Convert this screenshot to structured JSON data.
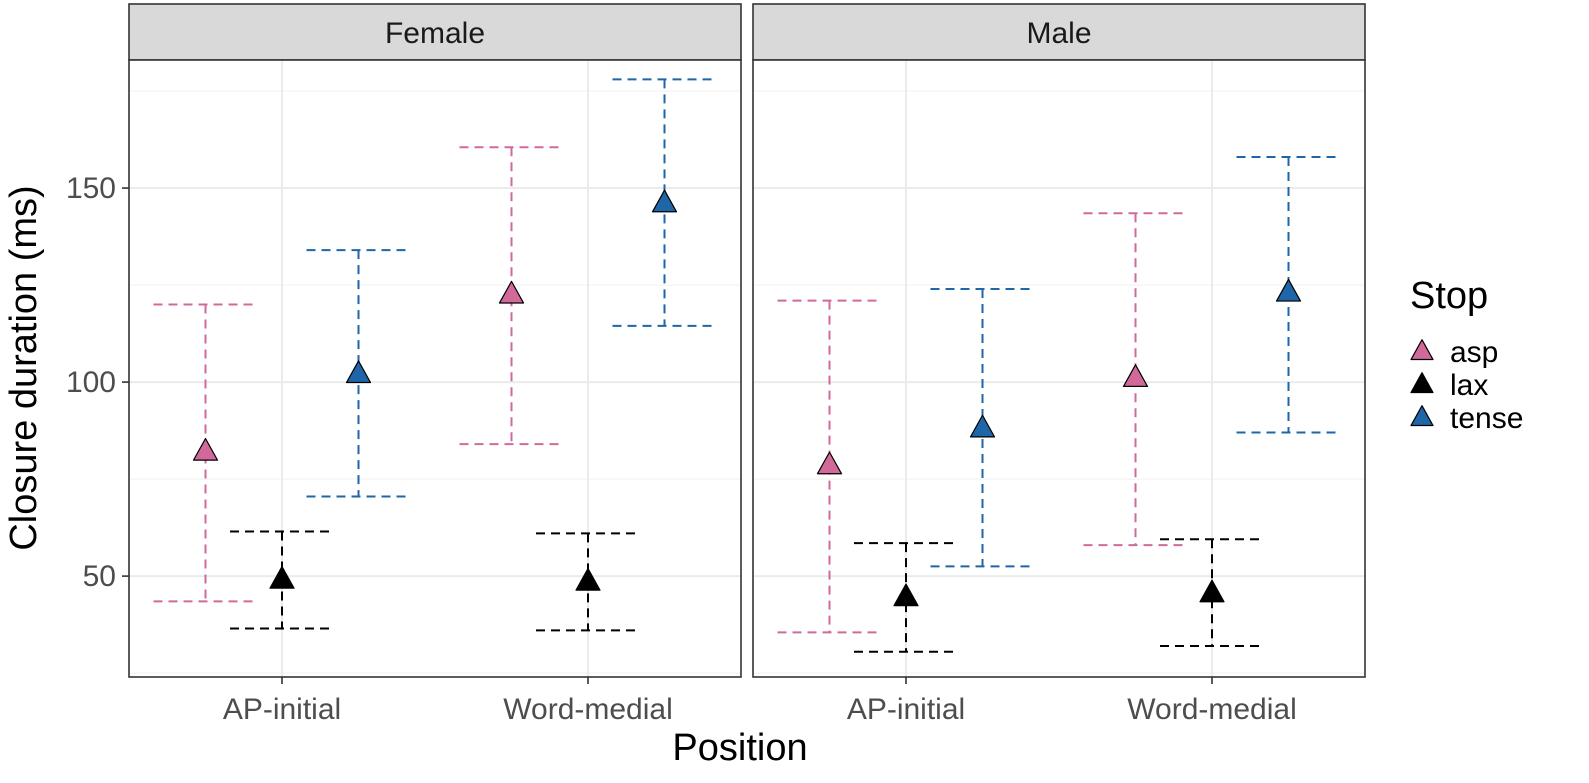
{
  "chart_data": {
    "type": "scatter",
    "xlabel": "Position",
    "ylabel": "Closure duration (ms)",
    "ylim": [
      24,
      183
    ],
    "y_ticks": [
      50,
      100,
      150
    ],
    "categories": [
      "AP-initial",
      "Word-medial"
    ],
    "legend": {
      "title": "Stop",
      "placement": "right",
      "entries": [
        {
          "name": "asp",
          "color": "#d1699b"
        },
        {
          "name": "lax",
          "color": "#000000"
        },
        {
          "name": "tense",
          "color": "#1f66a8"
        }
      ]
    },
    "grid": true,
    "facets": [
      {
        "label": "Female",
        "series": [
          {
            "name": "asp",
            "color": "#d1699b",
            "points": [
              {
                "x": "AP-initial",
                "y": 82,
                "ymin": 43.5,
                "ymax": 120
              },
              {
                "x": "Word-medial",
                "y": 122.5,
                "ymin": 84,
                "ymax": 160.5
              }
            ]
          },
          {
            "name": "lax",
            "color": "#000000",
            "points": [
              {
                "x": "AP-initial",
                "y": 49,
                "ymin": 36.5,
                "ymax": 61.5
              },
              {
                "x": "Word-medial",
                "y": 48.5,
                "ymin": 36,
                "ymax": 61
              }
            ]
          },
          {
            "name": "tense",
            "color": "#1f66a8",
            "points": [
              {
                "x": "AP-initial",
                "y": 102,
                "ymin": 70.5,
                "ymax": 134
              },
              {
                "x": "Word-medial",
                "y": 146,
                "ymin": 114.5,
                "ymax": 178
              }
            ]
          }
        ]
      },
      {
        "label": "Male",
        "series": [
          {
            "name": "asp",
            "color": "#d1699b",
            "points": [
              {
                "x": "AP-initial",
                "y": 78.5,
                "ymin": 35.5,
                "ymax": 121
              },
              {
                "x": "Word-medial",
                "y": 101,
                "ymin": 58,
                "ymax": 143.5
              }
            ]
          },
          {
            "name": "lax",
            "color": "#000000",
            "points": [
              {
                "x": "AP-initial",
                "y": 44.5,
                "ymin": 30.5,
                "ymax": 58.5
              },
              {
                "x": "Word-medial",
                "y": 45.5,
                "ymin": 32,
                "ymax": 59.5
              }
            ]
          },
          {
            "name": "tense",
            "color": "#1f66a8",
            "points": [
              {
                "x": "AP-initial",
                "y": 88,
                "ymin": 52.5,
                "ymax": 124
              },
              {
                "x": "Word-medial",
                "y": 123,
                "ymin": 87,
                "ymax": 158
              }
            ]
          }
        ]
      }
    ]
  }
}
